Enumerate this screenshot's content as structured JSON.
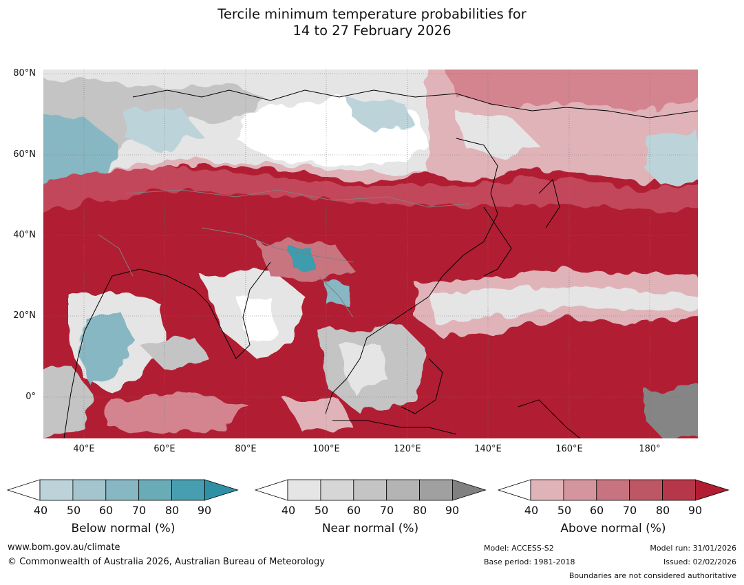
{
  "title": {
    "line1": "Tercile minimum temperature probabilities for",
    "line2": "14 to 27 February 2026"
  },
  "map": {
    "lat_labels": [
      "80°N",
      "60°N",
      "40°N",
      "20°N",
      "0°"
    ],
    "lon_labels": [
      "40°E",
      "60°E",
      "80°E",
      "100°E",
      "120°E",
      "140°E",
      "160°E",
      "180°"
    ],
    "colors": {
      "ocean_red": "#b11d32",
      "red_mid": "#c3475a",
      "red_light": "#d4848f",
      "red_pale": "#e0b3b9",
      "grey_pale": "#e5e5e5",
      "grey_mid": "#c4c4c4",
      "grey_dark": "#858585",
      "teal_pale": "#bdd3da",
      "teal_mid": "#87b7c2",
      "teal_dark": "#3e9cad",
      "coast": "#000000",
      "border": "#808080"
    }
  },
  "colorbars": [
    {
      "label": "Below normal (%)",
      "ticks": [
        "40",
        "50",
        "60",
        "70",
        "80",
        "90"
      ],
      "colors": [
        "#ffffff",
        "#bdd3da",
        "#a4c5cd",
        "#87b7c2",
        "#6aabb8",
        "#479eb0",
        "#2f8fa5"
      ]
    },
    {
      "label": "Near normal (%)",
      "ticks": [
        "40",
        "50",
        "60",
        "70",
        "80",
        "90"
      ],
      "colors": [
        "#ffffff",
        "#e5e5e5",
        "#d6d6d6",
        "#c4c4c4",
        "#b4b4b4",
        "#a0a0a0",
        "#808080"
      ]
    },
    {
      "label": "Above normal (%)",
      "ticks": [
        "40",
        "50",
        "60",
        "70",
        "80",
        "90"
      ],
      "colors": [
        "#ffffff",
        "#e0b3b9",
        "#d4959e",
        "#c87480",
        "#bd5764",
        "#b63749",
        "#b11d32"
      ]
    }
  ],
  "footer": {
    "url": "www.bom.gov.au/climate",
    "copyright": "© Commonwealth of Australia 2026, Australian Bureau of Meteorology",
    "model": "Model: ACCESS-S2",
    "base_period": "Base period: 1981-2018",
    "model_run": "Model run: 31/01/2026",
    "issued": "Issued: 02/02/2026",
    "boundaries": "Boundaries are not considered authoritative"
  }
}
